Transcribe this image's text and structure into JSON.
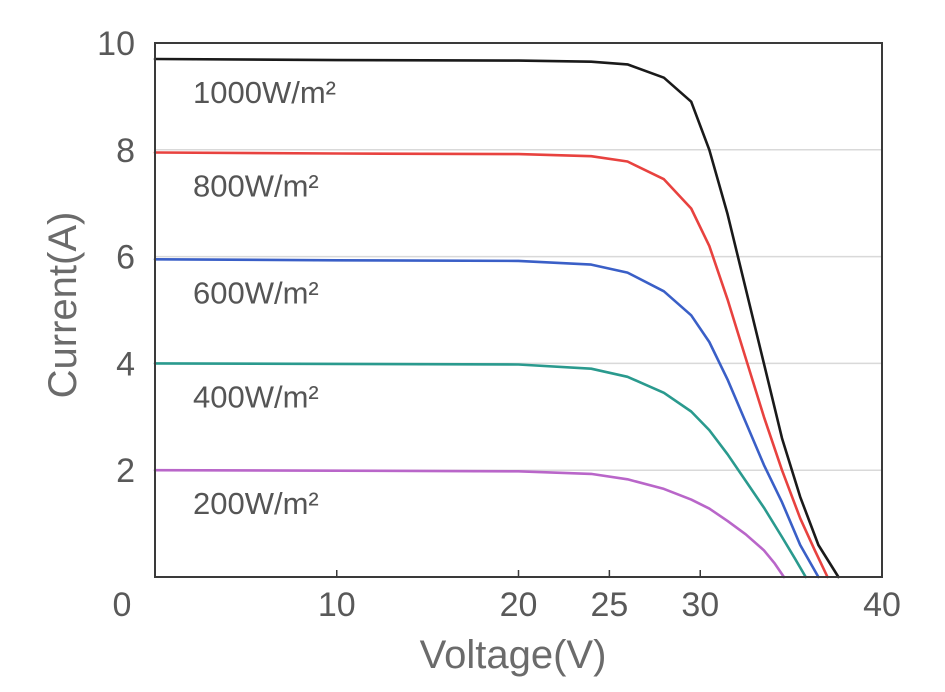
{
  "chart_data": {
    "type": "line",
    "title": "",
    "xlabel": "Voltage(V)",
    "ylabel": "Current(A)",
    "xlim": [
      0,
      40
    ],
    "ylim": [
      0,
      10
    ],
    "x_ticks": [
      {
        "label": "0",
        "value": 0
      },
      {
        "label": "10",
        "value": 10
      },
      {
        "label": "20",
        "value": 20
      },
      {
        "label": "25",
        "value": 25
      },
      {
        "label": "30",
        "value": 30
      },
      {
        "label": "40",
        "value": 40
      }
    ],
    "y_ticks": [
      {
        "label": "2",
        "value": 2
      },
      {
        "label": "4",
        "value": 4
      },
      {
        "label": "6",
        "value": 6
      },
      {
        "label": "8",
        "value": 8
      },
      {
        "label": "10",
        "value": 10
      }
    ],
    "grid": "horizontal",
    "series": [
      {
        "label": "1000W/m²",
        "color": "#1a1a1a",
        "isc": 9.7,
        "knee": 26,
        "voc": 37.6,
        "points": [
          [
            0,
            9.7
          ],
          [
            10,
            9.68
          ],
          [
            20,
            9.67
          ],
          [
            24,
            9.65
          ],
          [
            26,
            9.6
          ],
          [
            28,
            9.35
          ],
          [
            29.5,
            8.9
          ],
          [
            30.5,
            8.0
          ],
          [
            31.5,
            6.8
          ],
          [
            32.5,
            5.4
          ],
          [
            33.5,
            4.0
          ],
          [
            34.5,
            2.6
          ],
          [
            35.5,
            1.5
          ],
          [
            36.5,
            0.6
          ],
          [
            37.6,
            0
          ]
        ]
      },
      {
        "label": "800W/m²",
        "color": "#e8423f",
        "isc": 7.95,
        "knee": 25,
        "voc": 37.0,
        "points": [
          [
            0,
            7.95
          ],
          [
            10,
            7.93
          ],
          [
            20,
            7.92
          ],
          [
            24,
            7.88
          ],
          [
            26,
            7.78
          ],
          [
            28,
            7.45
          ],
          [
            29.5,
            6.9
          ],
          [
            30.5,
            6.2
          ],
          [
            31.5,
            5.2
          ],
          [
            32.5,
            4.1
          ],
          [
            33.5,
            3.0
          ],
          [
            34.5,
            2.0
          ],
          [
            35.5,
            1.1
          ],
          [
            36.3,
            0.5
          ],
          [
            37.0,
            0
          ]
        ]
      },
      {
        "label": "600W/m²",
        "color": "#3a5fc7",
        "isc": 5.95,
        "knee": 24,
        "voc": 36.5,
        "points": [
          [
            0,
            5.95
          ],
          [
            10,
            5.93
          ],
          [
            20,
            5.92
          ],
          [
            24,
            5.85
          ],
          [
            26,
            5.7
          ],
          [
            28,
            5.35
          ],
          [
            29.5,
            4.9
          ],
          [
            30.5,
            4.4
          ],
          [
            31.5,
            3.7
          ],
          [
            32.5,
            2.9
          ],
          [
            33.5,
            2.1
          ],
          [
            34.5,
            1.4
          ],
          [
            35.5,
            0.6
          ],
          [
            36.5,
            0
          ]
        ]
      },
      {
        "label": "400W/m²",
        "color": "#2a9a8e",
        "isc": 4.0,
        "knee": 23,
        "voc": 35.8,
        "points": [
          [
            0,
            4.0
          ],
          [
            10,
            3.99
          ],
          [
            20,
            3.98
          ],
          [
            24,
            3.9
          ],
          [
            26,
            3.75
          ],
          [
            28,
            3.45
          ],
          [
            29.5,
            3.1
          ],
          [
            30.5,
            2.75
          ],
          [
            31.5,
            2.3
          ],
          [
            32.5,
            1.8
          ],
          [
            33.5,
            1.3
          ],
          [
            34.5,
            0.75
          ],
          [
            35.2,
            0.35
          ],
          [
            35.8,
            0
          ]
        ]
      },
      {
        "label": "200W/m²",
        "color": "#b966c9",
        "isc": 2.0,
        "knee": 22,
        "voc": 34.6,
        "points": [
          [
            0,
            2.0
          ],
          [
            10,
            1.99
          ],
          [
            20,
            1.98
          ],
          [
            24,
            1.93
          ],
          [
            26,
            1.83
          ],
          [
            28,
            1.65
          ],
          [
            29.5,
            1.45
          ],
          [
            30.5,
            1.28
          ],
          [
            31.5,
            1.05
          ],
          [
            32.5,
            0.8
          ],
          [
            33.5,
            0.5
          ],
          [
            34.1,
            0.25
          ],
          [
            34.6,
            0
          ]
        ]
      }
    ]
  }
}
